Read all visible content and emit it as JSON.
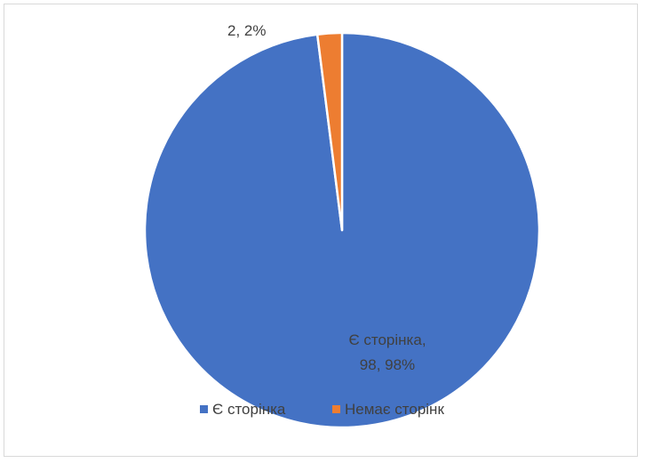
{
  "chart_data": {
    "type": "pie",
    "title": "",
    "series": [
      {
        "values": [
          98,
          2
        ]
      }
    ],
    "categories": [
      "Є сторінка",
      "Немає сторінк"
    ],
    "data_labels": [
      {
        "category_line": "Є сторінка,",
        "value_line": "98, 98%"
      },
      {
        "text": "2, 2%"
      }
    ],
    "colors": [
      "#4472c4",
      "#ed7d31"
    ],
    "legend_position": "bottom"
  }
}
